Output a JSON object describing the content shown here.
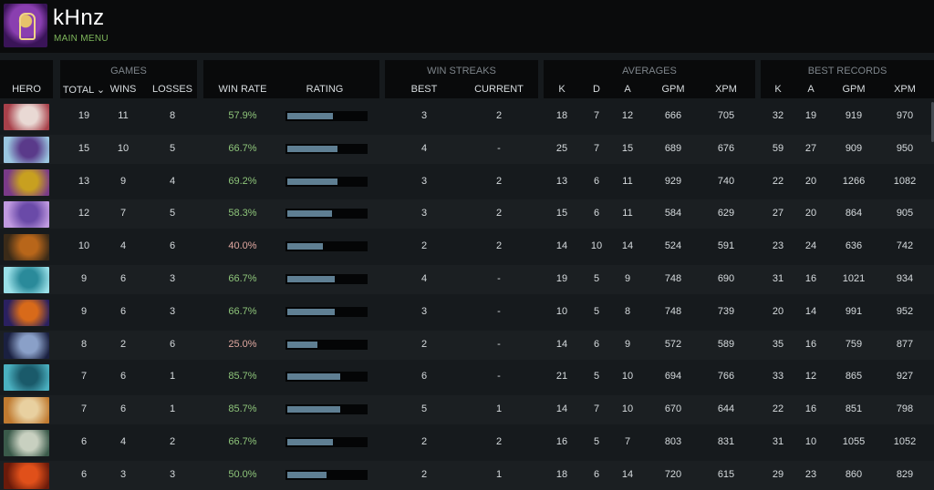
{
  "profile": {
    "username": "kHnz",
    "menu_link": "MAIN MENU"
  },
  "headers": {
    "groups": {
      "games": "GAMES",
      "win_streaks": "WIN STREAKS",
      "averages": "AVERAGES",
      "best_records": "BEST RECORDS"
    },
    "columns": {
      "hero": "HERO",
      "total": "TOTAL ⌄",
      "wins": "WINS",
      "losses": "LOSSES",
      "win_rate": "WIN RATE",
      "rating": "RATING",
      "best": "BEST",
      "current": "CURRENT",
      "avg_k": "K",
      "avg_d": "D",
      "avg_a": "A",
      "avg_gpm": "GPM",
      "avg_xpm": "XPM",
      "best_k": "K",
      "best_a": "A",
      "best_gpm": "GPM",
      "best_xpm": "XPM"
    }
  },
  "rows": [
    {
      "portrait_colors": [
        "#e9d9d4",
        "#a8404a"
      ],
      "total": "19",
      "wins": "11",
      "losses": "8",
      "win_rate": "57.9%",
      "rating": 0.58,
      "best": "3",
      "current": "2",
      "k": "18",
      "d": "7",
      "a": "12",
      "gpm": "666",
      "xpm": "705",
      "bk": "32",
      "ba": "19",
      "bgpm": "919",
      "bxpm": "970"
    },
    {
      "portrait_colors": [
        "#5a3a8a",
        "#9ac6e0"
      ],
      "total": "15",
      "wins": "10",
      "losses": "5",
      "win_rate": "66.7%",
      "rating": 0.64,
      "best": "4",
      "current": "-",
      "k": "25",
      "d": "7",
      "a": "15",
      "gpm": "689",
      "xpm": "676",
      "bk": "59",
      "ba": "27",
      "bgpm": "909",
      "bxpm": "950"
    },
    {
      "portrait_colors": [
        "#c8a020",
        "#7a3a88"
      ],
      "total": "13",
      "wins": "9",
      "losses": "4",
      "win_rate": "69.2%",
      "rating": 0.64,
      "best": "3",
      "current": "2",
      "k": "13",
      "d": "6",
      "a": "11",
      "gpm": "929",
      "xpm": "740",
      "bk": "22",
      "ba": "20",
      "bgpm": "1266",
      "bxpm": "1082"
    },
    {
      "portrait_colors": [
        "#6a4aa8",
        "#c09ae0"
      ],
      "total": "12",
      "wins": "7",
      "losses": "5",
      "win_rate": "58.3%",
      "rating": 0.57,
      "best": "3",
      "current": "2",
      "k": "15",
      "d": "6",
      "a": "11",
      "gpm": "584",
      "xpm": "629",
      "bk": "27",
      "ba": "20",
      "bgpm": "864",
      "bxpm": "905"
    },
    {
      "portrait_colors": [
        "#b8661a",
        "#3a2a18"
      ],
      "total": "10",
      "wins": "4",
      "losses": "6",
      "win_rate": "40.0%",
      "rating": 0.45,
      "best": "2",
      "current": "2",
      "k": "14",
      "d": "10",
      "a": "14",
      "gpm": "524",
      "xpm": "591",
      "bk": "23",
      "ba": "24",
      "bgpm": "636",
      "bxpm": "742"
    },
    {
      "portrait_colors": [
        "#2a8a9a",
        "#9ae0e8"
      ],
      "total": "9",
      "wins": "6",
      "losses": "3",
      "win_rate": "66.7%",
      "rating": 0.6,
      "best": "4",
      "current": "-",
      "k": "19",
      "d": "5",
      "a": "9",
      "gpm": "748",
      "xpm": "690",
      "bk": "31",
      "ba": "16",
      "bgpm": "1021",
      "bxpm": "934"
    },
    {
      "portrait_colors": [
        "#d86a1a",
        "#2a2060"
      ],
      "total": "9",
      "wins": "6",
      "losses": "3",
      "win_rate": "66.7%",
      "rating": 0.6,
      "best": "3",
      "current": "-",
      "k": "10",
      "d": "5",
      "a": "8",
      "gpm": "748",
      "xpm": "739",
      "bk": "20",
      "ba": "14",
      "bgpm": "991",
      "bxpm": "952"
    },
    {
      "portrait_colors": [
        "#8aa0c8",
        "#1a2040"
      ],
      "total": "8",
      "wins": "2",
      "losses": "6",
      "win_rate": "25.0%",
      "rating": 0.38,
      "best": "2",
      "current": "-",
      "k": "14",
      "d": "6",
      "a": "9",
      "gpm": "572",
      "xpm": "589",
      "bk": "35",
      "ba": "16",
      "bgpm": "759",
      "bxpm": "877"
    },
    {
      "portrait_colors": [
        "#1a5a6a",
        "#4ab0c0"
      ],
      "total": "7",
      "wins": "6",
      "losses": "1",
      "win_rate": "85.7%",
      "rating": 0.67,
      "best": "6",
      "current": "-",
      "k": "21",
      "d": "5",
      "a": "10",
      "gpm": "694",
      "xpm": "766",
      "bk": "33",
      "ba": "12",
      "bgpm": "865",
      "bxpm": "927"
    },
    {
      "portrait_colors": [
        "#e8d0a0",
        "#c07a30"
      ],
      "total": "7",
      "wins": "6",
      "losses": "1",
      "win_rate": "85.7%",
      "rating": 0.67,
      "best": "5",
      "current": "1",
      "k": "14",
      "d": "7",
      "a": "10",
      "gpm": "670",
      "xpm": "644",
      "bk": "22",
      "ba": "16",
      "bgpm": "851",
      "bxpm": "798"
    },
    {
      "portrait_colors": [
        "#c8d0c0",
        "#3a5a4a"
      ],
      "total": "6",
      "wins": "4",
      "losses": "2",
      "win_rate": "66.7%",
      "rating": 0.58,
      "best": "2",
      "current": "2",
      "k": "16",
      "d": "5",
      "a": "7",
      "gpm": "803",
      "xpm": "831",
      "bk": "31",
      "ba": "10",
      "bgpm": "1055",
      "bxpm": "1052"
    },
    {
      "portrait_colors": [
        "#e0501a",
        "#6a1a0a"
      ],
      "total": "6",
      "wins": "3",
      "losses": "3",
      "win_rate": "50.0%",
      "rating": 0.5,
      "best": "2",
      "current": "1",
      "k": "18",
      "d": "6",
      "a": "14",
      "gpm": "720",
      "xpm": "615",
      "bk": "29",
      "ba": "23",
      "bgpm": "860",
      "bxpm": "829"
    }
  ]
}
